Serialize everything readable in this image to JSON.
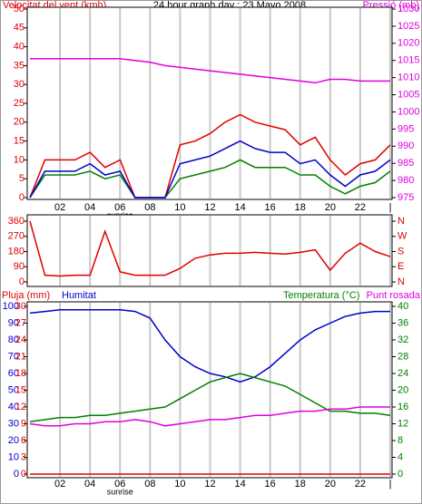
{
  "chart_data": [
    {
      "type": "line",
      "title": "24 hour graph day : 23 Mayo 2008",
      "ylabel": "Velocitat del vent (kmh)",
      "y2label": "Pressió (mb)",
      "ylabel_color": "#e00000",
      "y2label_color": "#e000e0",
      "ytick_color": "#e00000",
      "y2tick_color": "#e000e0",
      "x": [
        0,
        1,
        2,
        3,
        4,
        5,
        6,
        7,
        8,
        9,
        10,
        11,
        12,
        13,
        14,
        15,
        16,
        17,
        18,
        19,
        20,
        21,
        22,
        23,
        24
      ],
      "xlim": [
        0,
        24
      ],
      "xticks": [
        {
          "value": 2,
          "label": "02"
        },
        {
          "value": 4,
          "label": "04"
        },
        {
          "value": 6,
          "label": "06"
        },
        {
          "value": 8,
          "label": "08"
        },
        {
          "value": 10,
          "label": "10"
        },
        {
          "value": 12,
          "label": "12"
        },
        {
          "value": 14,
          "label": "14"
        },
        {
          "value": 16,
          "label": "16"
        },
        {
          "value": 18,
          "label": "18"
        },
        {
          "value": 20,
          "label": "20"
        },
        {
          "value": 22,
          "label": "22"
        },
        {
          "value": 24,
          "label": "|"
        }
      ],
      "ylim": [
        0,
        50
      ],
      "yticks": [
        0,
        5,
        10,
        15,
        20,
        25,
        30,
        35,
        40,
        45,
        50
      ],
      "y2lim": [
        975,
        1030
      ],
      "y2ticks": [
        975,
        980,
        985,
        990,
        995,
        1000,
        1005,
        1010,
        1015,
        1020,
        1025,
        1030
      ],
      "annotations": [
        {
          "x": 6,
          "text": "sunrise"
        }
      ],
      "series": [
        {
          "color": "#e00000",
          "values": [
            0,
            10,
            10,
            10,
            12,
            8,
            10,
            0,
            0,
            0,
            14,
            15,
            17,
            20,
            22,
            20,
            19,
            18,
            14,
            16,
            10,
            6,
            9,
            10,
            14
          ]
        },
        {
          "color": "#008000",
          "values": [
            0,
            6,
            6,
            6,
            7,
            5,
            6,
            0,
            0,
            0,
            5,
            6,
            7,
            8,
            10,
            8,
            8,
            8,
            6,
            6,
            3,
            1,
            3,
            4,
            7
          ]
        },
        {
          "color": "#0000d0",
          "values": [
            0,
            7,
            7,
            7,
            9,
            6,
            7,
            0,
            0,
            0,
            9,
            10,
            11,
            13,
            15,
            13,
            12,
            12,
            9,
            10,
            6,
            3,
            6,
            7,
            10
          ]
        },
        {
          "color": "#e000e0",
          "axis": "y2",
          "values": [
            1015.5,
            1015.5,
            1015.5,
            1015.5,
            1015.5,
            1015.5,
            1015.5,
            1015,
            1014.5,
            1013.5,
            1013,
            1012.5,
            1012,
            1011.5,
            1011,
            1010.5,
            1010,
            1009.5,
            1009,
            1008.5,
            1009.5,
            1009.5,
            1009,
            1009,
            1009
          ]
        }
      ]
    },
    {
      "type": "line",
      "ytick_color": "#e00000",
      "y2tick_color": "#e00000",
      "x": [
        0,
        1,
        2,
        3,
        4,
        5,
        6,
        7,
        8,
        9,
        10,
        11,
        12,
        13,
        14,
        15,
        16,
        17,
        18,
        19,
        20,
        21,
        22,
        23,
        24
      ],
      "xlim": [
        0,
        24
      ],
      "xticks": [
        {
          "value": 2,
          "label": "02"
        },
        {
          "value": 4,
          "label": "04"
        },
        {
          "value": 6,
          "label": "06"
        },
        {
          "value": 8,
          "label": "08"
        },
        {
          "value": 10,
          "label": "10"
        },
        {
          "value": 12,
          "label": "12"
        },
        {
          "value": 14,
          "label": "14"
        },
        {
          "value": 16,
          "label": "16"
        },
        {
          "value": 18,
          "label": "18"
        },
        {
          "value": 20,
          "label": "20"
        },
        {
          "value": 22,
          "label": "22"
        },
        {
          "value": 24,
          "label": "|"
        }
      ],
      "show_xlabels": false,
      "ylim": [
        0,
        360
      ],
      "yticks": [
        0,
        90,
        180,
        270,
        360
      ],
      "y2lim": [
        0,
        360
      ],
      "y2ticks": [
        {
          "value": 0,
          "label": "N"
        },
        {
          "value": 90,
          "label": "E"
        },
        {
          "value": 180,
          "label": "S"
        },
        {
          "value": 270,
          "label": "W"
        },
        {
          "value": 360,
          "label": "N"
        }
      ],
      "series": [
        {
          "color": "#e00000",
          "values": [
            360,
            40,
            35,
            40,
            40,
            300,
            60,
            40,
            40,
            40,
            80,
            140,
            160,
            170,
            170,
            175,
            170,
            165,
            175,
            190,
            70,
            170,
            230,
            180,
            150
          ]
        }
      ]
    },
    {
      "type": "line",
      "ytick_color": "#0000d0",
      "y2tick_color": "#008000",
      "y3tick_color": "#e00000",
      "x": [
        0,
        1,
        2,
        3,
        4,
        5,
        6,
        7,
        8,
        9,
        10,
        11,
        12,
        13,
        14,
        15,
        16,
        17,
        18,
        19,
        20,
        21,
        22,
        23,
        24
      ],
      "xlim": [
        0,
        24
      ],
      "xticks": [
        {
          "value": 2,
          "label": "02"
        },
        {
          "value": 4,
          "label": "04"
        },
        {
          "value": 6,
          "label": "06"
        },
        {
          "value": 8,
          "label": "08"
        },
        {
          "value": 10,
          "label": "10"
        },
        {
          "value": 12,
          "label": "12"
        },
        {
          "value": 14,
          "label": "14"
        },
        {
          "value": 16,
          "label": "16"
        },
        {
          "value": 18,
          "label": "18"
        },
        {
          "value": 20,
          "label": "20"
        },
        {
          "value": 22,
          "label": "22"
        },
        {
          "value": 24,
          "label": "|"
        }
      ],
      "ylim": [
        0,
        100
      ],
      "yticks": [
        0,
        10,
        20,
        30,
        40,
        50,
        60,
        70,
        80,
        90,
        100
      ],
      "y2lim": [
        0,
        40
      ],
      "y2ticks": [
        0,
        4,
        8,
        12,
        16,
        20,
        24,
        28,
        32,
        36,
        40
      ],
      "y3lim": [
        0,
        30
      ],
      "y3ticks": [
        0,
        3,
        6,
        9,
        12,
        15,
        18,
        21,
        24,
        27,
        30
      ],
      "annotations": [
        {
          "x": 6,
          "text": "sunrise"
        }
      ],
      "series": [
        {
          "name": "Pluja (mm)",
          "color": "#e00000",
          "axis": "y3",
          "values": [
            0,
            0,
            0,
            0,
            0,
            0,
            0,
            0,
            0,
            0,
            0,
            0,
            0,
            0,
            0,
            0,
            0,
            0,
            0,
            0,
            0,
            0,
            0,
            0,
            0
          ]
        },
        {
          "name": "Humitat",
          "color": "#0000d0",
          "values": [
            96,
            97,
            98,
            98,
            98,
            98,
            98,
            97,
            93,
            80,
            70,
            64,
            60,
            58,
            55,
            58,
            64,
            72,
            80,
            86,
            90,
            94,
            96,
            97,
            97
          ]
        },
        {
          "name": "Temperatura (°C)",
          "color": "#008000",
          "axis": "y2",
          "values": [
            12.5,
            13,
            13.5,
            13.5,
            14,
            14,
            14.5,
            15,
            15.5,
            16,
            18,
            20,
            22,
            23,
            24,
            23,
            22,
            21,
            19,
            17,
            15,
            15,
            14.5,
            14.5,
            14
          ]
        },
        {
          "name": "Punt rosada",
          "color": "#e000e0",
          "axis": "y2",
          "values": [
            12,
            11.5,
            11.5,
            12,
            12,
            12.5,
            12.5,
            13,
            12.5,
            11.5,
            12,
            12.5,
            13,
            13,
            13.5,
            14,
            14,
            14.5,
            15,
            15,
            15.5,
            15.5,
            16,
            16,
            16
          ]
        }
      ]
    }
  ]
}
